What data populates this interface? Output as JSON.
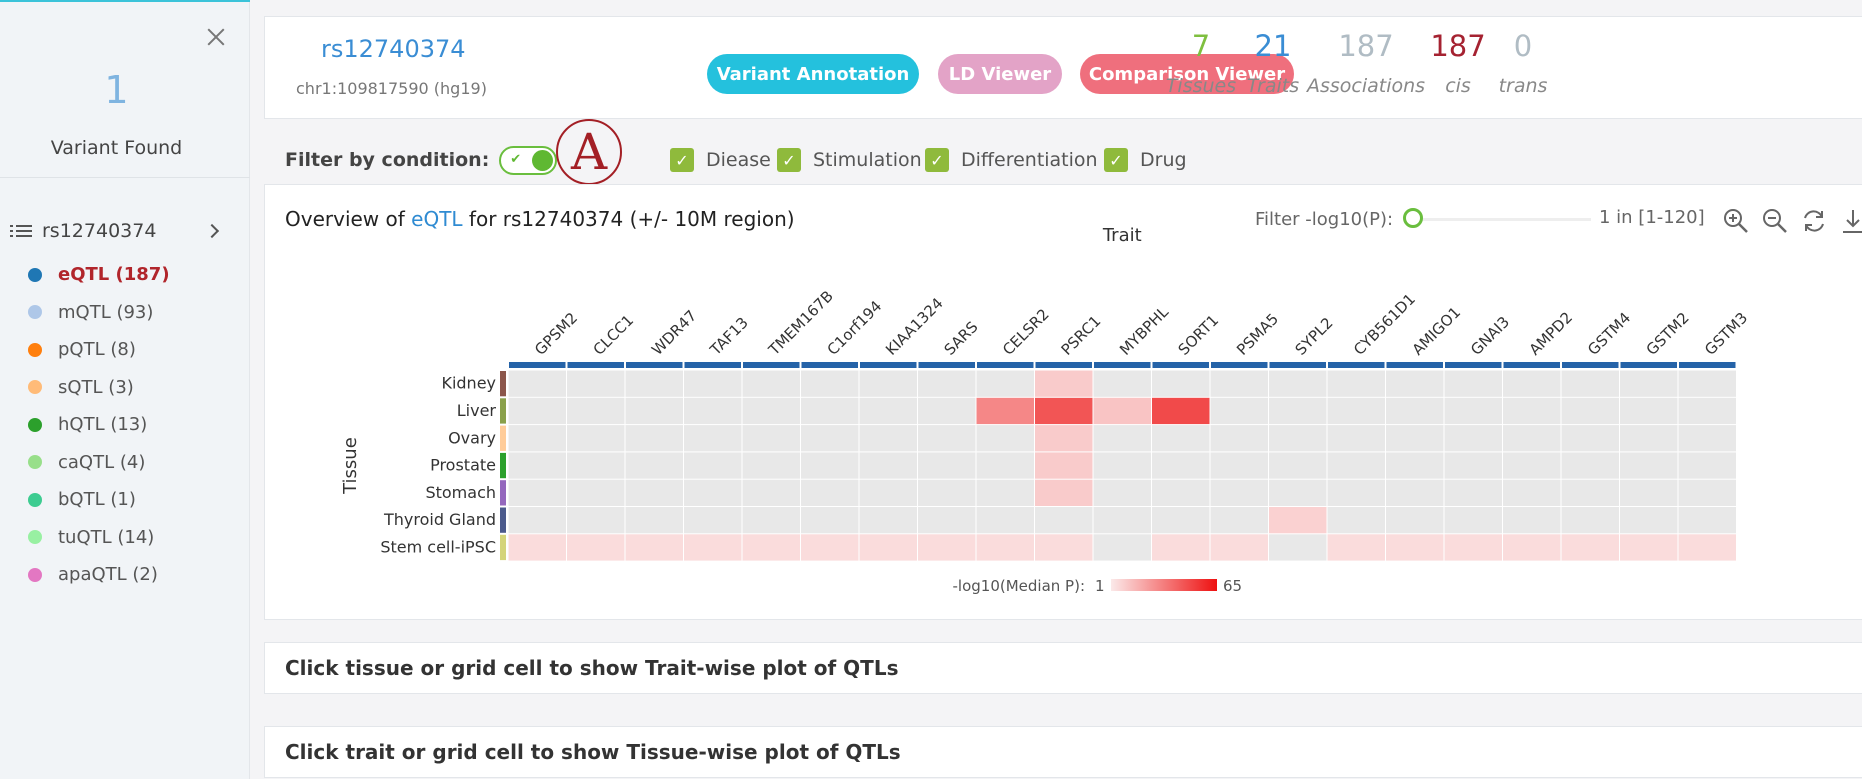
{
  "sidebar": {
    "found_count": "1",
    "found_label": "Variant Found",
    "variant": "rs12740374",
    "qtls": [
      {
        "label": "eQTL (187)",
        "color": "#1f77b4",
        "active": true
      },
      {
        "label": "mQTL (93)",
        "color": "#aec7e8",
        "active": false
      },
      {
        "label": "pQTL (8)",
        "color": "#ff7f0e",
        "active": false
      },
      {
        "label": "sQTL (3)",
        "color": "#ffbb78",
        "active": false
      },
      {
        "label": "hQTL (13)",
        "color": "#2ca02c",
        "active": false
      },
      {
        "label": "caQTL (4)",
        "color": "#98df8a",
        "active": false
      },
      {
        "label": "bQTL (1)",
        "color": "#3dcc91",
        "active": false
      },
      {
        "label": "tuQTL (14)",
        "color": "#98f0a2",
        "active": false
      },
      {
        "label": "apaQTL (2)",
        "color": "#e377c2",
        "active": false
      }
    ]
  },
  "header": {
    "rsid": "rs12740374",
    "coord": "chr1:109817590 (hg19)",
    "buttons": [
      {
        "label": "Variant Annotation",
        "color": "#24c1dd"
      },
      {
        "label": "LD Viewer",
        "color": "#e3a3c7"
      },
      {
        "label": "Comparison Viewer",
        "color": "#ef6f7d"
      }
    ],
    "stats": [
      {
        "num": "7",
        "label": "Tissues",
        "color": "#7fbf3f"
      },
      {
        "num": "21",
        "label": "Traits",
        "color": "#3a8dd4"
      },
      {
        "num": "187",
        "label": "Associations",
        "color": "#b0bcc4"
      },
      {
        "num": "187",
        "label": "cis",
        "color": "#a52231"
      },
      {
        "num": "0",
        "label": "trans",
        "color": "#b0bcc4"
      }
    ]
  },
  "filter": {
    "label": "Filter by condition:",
    "marker": "A",
    "conditions": [
      "Diease",
      "Stimulation",
      "Differentiation",
      "Drug"
    ]
  },
  "overview": {
    "title_pre": "Overview of ",
    "title_hl": "eQTL",
    "title_post": " for rs12740374 (+/- 10M region)",
    "pfilter_label": "Filter -log10(P):",
    "pfilter_range": "1 in [1-120]",
    "tools": [
      "zoom-in-icon",
      "zoom-out-icon",
      "refresh-icon",
      "download-icon"
    ]
  },
  "chart_data": {
    "type": "heatmap",
    "xlabel": "Trait",
    "ylabel": "Tissue",
    "x": [
      "GPSM2",
      "CLCC1",
      "WDR47",
      "TAF13",
      "TMEM167B",
      "C1orf194",
      "KIAA1324",
      "SARS",
      "CELSR2",
      "PSRC1",
      "MYBPHL",
      "SORT1",
      "PSMA5",
      "SYPL2",
      "CYB561D1",
      "AMIGO1",
      "GNAI3",
      "AMPD2",
      "GSTM4",
      "GSTM2",
      "GSTM3"
    ],
    "y": [
      "Kidney",
      "Liver",
      "Ovary",
      "Prostate",
      "Stomach",
      "Thyroid Gland",
      "Stem cell-iPSC"
    ],
    "tissue_colors": [
      "#8c564b",
      "#8aa04a",
      "#ffcc99",
      "#2ca02c",
      "#9467bd",
      "#4c5a8c",
      "#d4d47a"
    ],
    "values": [
      [
        null,
        null,
        null,
        null,
        null,
        null,
        null,
        null,
        null,
        10,
        null,
        null,
        null,
        null,
        null,
        null,
        null,
        null,
        null,
        null,
        null
      ],
      [
        null,
        null,
        null,
        null,
        null,
        null,
        null,
        null,
        30,
        45,
        12,
        48,
        null,
        null,
        null,
        null,
        null,
        null,
        null,
        null,
        null
      ],
      [
        null,
        null,
        null,
        null,
        null,
        null,
        null,
        null,
        null,
        10,
        null,
        null,
        null,
        null,
        null,
        null,
        null,
        null,
        null,
        null,
        null
      ],
      [
        null,
        null,
        null,
        null,
        null,
        null,
        null,
        null,
        null,
        10,
        null,
        null,
        null,
        null,
        null,
        null,
        null,
        null,
        null,
        null,
        null
      ],
      [
        null,
        null,
        null,
        null,
        null,
        null,
        null,
        null,
        null,
        10,
        null,
        null,
        null,
        null,
        null,
        null,
        null,
        null,
        null,
        null,
        null
      ],
      [
        null,
        null,
        null,
        null,
        null,
        null,
        null,
        null,
        null,
        null,
        null,
        null,
        null,
        8,
        null,
        null,
        null,
        null,
        null,
        null,
        null
      ],
      [
        5,
        5,
        5,
        5,
        5,
        5,
        5,
        5,
        5,
        5,
        null,
        5,
        5,
        null,
        5,
        5,
        5,
        5,
        5,
        5,
        5
      ]
    ],
    "legend_label": "-log10(Median P):",
    "legend_min": "1",
    "legend_max": "65",
    "scale_min": 1,
    "scale_max": 65
  },
  "panels": {
    "trait_hint": "Click tissue or grid cell to show Trait-wise plot of QTLs",
    "tissue_hint": "Click trait or grid cell to show Tissue-wise plot of QTLs"
  }
}
